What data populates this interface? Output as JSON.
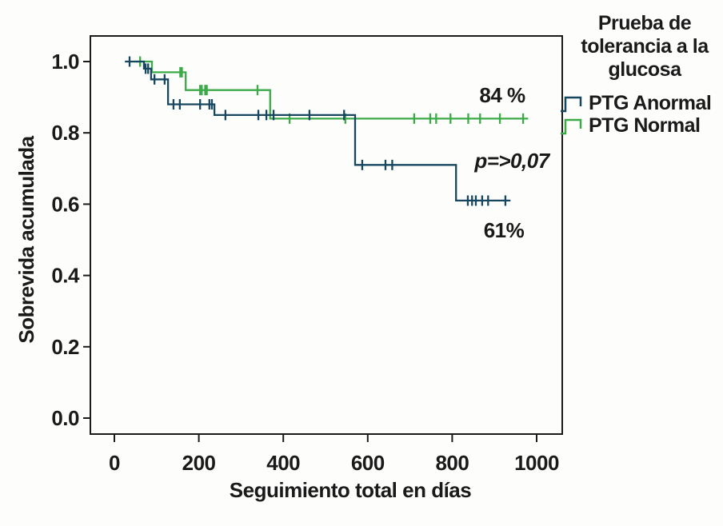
{
  "figure": {
    "background_color": "#fdfdfc",
    "description": "Kaplan-Meier cumulative survival curves by glucose tolerance test result"
  },
  "chart_data": {
    "type": "line",
    "subtype": "kaplan-meier-step",
    "title": "",
    "xlabel": "Seguimiento total en días",
    "ylabel": "Sobrevida acumulada",
    "xlim": [
      0,
      1060
    ],
    "ylim": [
      0,
      1.05
    ],
    "grid": false,
    "x_ticks": [
      {
        "value": 0,
        "label": "0"
      },
      {
        "value": 200,
        "label": "200"
      },
      {
        "value": 400,
        "label": "400"
      },
      {
        "value": 600,
        "label": "600"
      },
      {
        "value": 800,
        "label": "800"
      },
      {
        "value": 1000,
        "label": "1000"
      }
    ],
    "y_ticks": [
      {
        "value": 1.0,
        "label": "1.0"
      },
      {
        "value": 0.8,
        "label": "0.8"
      },
      {
        "value": 0.6,
        "label": "0.6"
      },
      {
        "value": 0.4,
        "label": "0.4"
      },
      {
        "value": 0.2,
        "label": "0.2"
      },
      {
        "value": 0.0,
        "label": "0.0"
      }
    ],
    "series": [
      {
        "name": "PTG Normal",
        "color": "#3bab47",
        "final_survival_label": "84 %",
        "points": [
          [
            47,
            1.0
          ],
          [
            89,
            1.0
          ],
          [
            89,
            0.97
          ],
          [
            169,
            0.97
          ],
          [
            169,
            0.92
          ],
          [
            369,
            0.92
          ],
          [
            369,
            0.84
          ],
          [
            980,
            0.84
          ]
        ],
        "censor_points": [
          [
            61,
            1.0
          ],
          [
            156,
            0.97
          ],
          [
            160,
            0.97
          ],
          [
            203,
            0.92
          ],
          [
            207,
            0.92
          ],
          [
            215,
            0.92
          ],
          [
            219,
            0.92
          ],
          [
            339,
            0.92
          ],
          [
            415,
            0.84
          ],
          [
            547,
            0.84
          ],
          [
            710,
            0.84
          ],
          [
            748,
            0.84
          ],
          [
            762,
            0.84
          ],
          [
            796,
            0.84
          ],
          [
            838,
            0.84
          ],
          [
            866,
            0.84
          ],
          [
            913,
            0.84
          ],
          [
            968,
            0.84
          ]
        ]
      },
      {
        "name": "PTG Anormal",
        "color": "#17465f",
        "final_survival_label": "61%",
        "points": [
          [
            25,
            1.0
          ],
          [
            70,
            1.0
          ],
          [
            70,
            0.98
          ],
          [
            87,
            0.98
          ],
          [
            87,
            0.95
          ],
          [
            127,
            0.95
          ],
          [
            127,
            0.88
          ],
          [
            237,
            0.88
          ],
          [
            237,
            0.85
          ],
          [
            570,
            0.85
          ],
          [
            570,
            0.71
          ],
          [
            809,
            0.71
          ],
          [
            809,
            0.61
          ],
          [
            938,
            0.61
          ]
        ],
        "censor_points": [
          [
            36,
            1.0
          ],
          [
            74,
            0.98
          ],
          [
            80,
            0.98
          ],
          [
            95,
            0.95
          ],
          [
            119,
            0.95
          ],
          [
            140,
            0.88
          ],
          [
            155,
            0.88
          ],
          [
            203,
            0.88
          ],
          [
            225,
            0.88
          ],
          [
            231,
            0.88
          ],
          [
            263,
            0.85
          ],
          [
            341,
            0.85
          ],
          [
            360,
            0.85
          ],
          [
            377,
            0.85
          ],
          [
            462,
            0.85
          ],
          [
            544,
            0.85
          ],
          [
            587,
            0.71
          ],
          [
            642,
            0.71
          ],
          [
            658,
            0.71
          ],
          [
            837,
            0.61
          ],
          [
            847,
            0.61
          ],
          [
            856,
            0.61
          ],
          [
            871,
            0.61
          ],
          [
            885,
            0.61
          ],
          [
            926,
            0.61
          ]
        ]
      }
    ],
    "annotations": [
      {
        "text": "84 %",
        "x_day": 918,
        "y_value": 0.905,
        "italic": false
      },
      {
        "text": "p=>0,07",
        "x_day": 941,
        "y_value": 0.722,
        "italic": true
      },
      {
        "text": "61%",
        "x_day": 922,
        "y_value": 0.527,
        "italic": false
      }
    ],
    "legend": {
      "position": "right",
      "title": "Prueba de tolerancia a la glucosa",
      "title_lines": [
        "Prueba de",
        "tolerancia a la",
        "glucosa"
      ],
      "entries": [
        {
          "label": "PTG Anormal",
          "color": "#17465f"
        },
        {
          "label": "PTG Normal",
          "color": "#3bab47"
        }
      ]
    }
  }
}
